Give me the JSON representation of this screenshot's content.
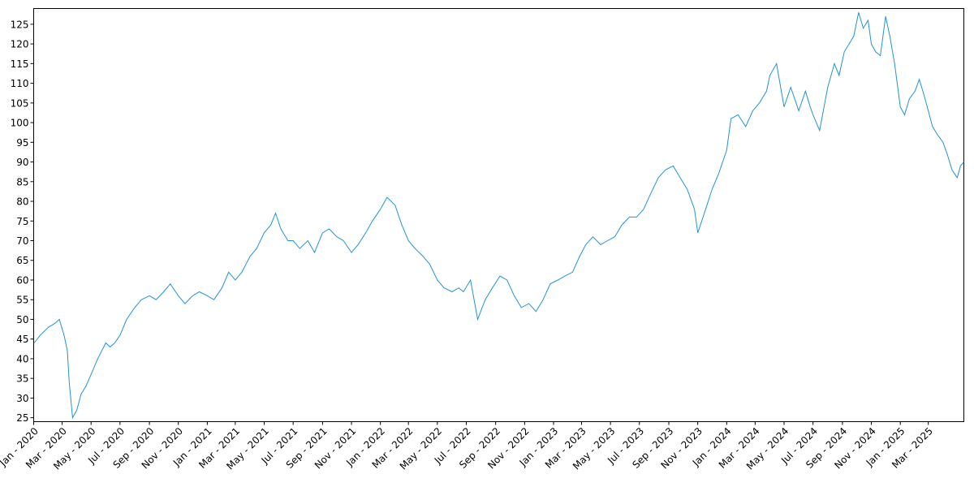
{
  "chart_data": {
    "type": "line",
    "title": "",
    "xlabel": "",
    "ylabel": "",
    "grid": false,
    "legend": "none",
    "colors": {
      "line": "#1f94d6",
      "axis": "#000000",
      "background": "#ffffff"
    },
    "xlim": [
      "2020-01-01",
      "2025-05-15"
    ],
    "ylim": [
      24,
      129
    ],
    "y_ticks": [
      25,
      30,
      35,
      40,
      45,
      50,
      55,
      60,
      65,
      70,
      75,
      80,
      85,
      90,
      95,
      100,
      105,
      110,
      115,
      120,
      125
    ],
    "x_ticks": [
      {
        "date": "2020-01-01",
        "label": "Jan - 2020"
      },
      {
        "date": "2020-03-01",
        "label": "Mar - 2020"
      },
      {
        "date": "2020-05-01",
        "label": "May - 2020"
      },
      {
        "date": "2020-07-01",
        "label": "Jul - 2020"
      },
      {
        "date": "2020-09-01",
        "label": "Sep - 2020"
      },
      {
        "date": "2020-11-01",
        "label": "Nov - 2020"
      },
      {
        "date": "2021-01-01",
        "label": "Jan - 2021"
      },
      {
        "date": "2021-03-01",
        "label": "Mar - 2021"
      },
      {
        "date": "2021-05-01",
        "label": "May - 2021"
      },
      {
        "date": "2021-07-01",
        "label": "Jul - 2021"
      },
      {
        "date": "2021-09-01",
        "label": "Sep - 2021"
      },
      {
        "date": "2021-11-01",
        "label": "Nov - 2021"
      },
      {
        "date": "2022-01-01",
        "label": "Jan - 2022"
      },
      {
        "date": "2022-03-01",
        "label": "Mar - 2022"
      },
      {
        "date": "2022-05-01",
        "label": "May - 2022"
      },
      {
        "date": "2022-07-01",
        "label": "Jul - 2022"
      },
      {
        "date": "2022-09-01",
        "label": "Sep - 2022"
      },
      {
        "date": "2022-11-01",
        "label": "Nov - 2022"
      },
      {
        "date": "2023-01-01",
        "label": "Jan - 2023"
      },
      {
        "date": "2023-03-01",
        "label": "Mar - 2023"
      },
      {
        "date": "2023-05-01",
        "label": "May - 2023"
      },
      {
        "date": "2023-07-01",
        "label": "Jul - 2023"
      },
      {
        "date": "2023-09-01",
        "label": "Sep - 2023"
      },
      {
        "date": "2023-11-01",
        "label": "Nov - 2023"
      },
      {
        "date": "2024-01-01",
        "label": "Jan - 2024"
      },
      {
        "date": "2024-03-01",
        "label": "Mar - 2024"
      },
      {
        "date": "2024-05-01",
        "label": "May - 2024"
      },
      {
        "date": "2024-07-01",
        "label": "Jul - 2024"
      },
      {
        "date": "2024-09-01",
        "label": "Sep - 2024"
      },
      {
        "date": "2024-11-01",
        "label": "Nov - 2024"
      },
      {
        "date": "2025-01-01",
        "label": "Jan - 2025"
      },
      {
        "date": "2025-03-01",
        "label": "Mar - 2025"
      }
    ],
    "series": [
      {
        "x": [
          "2020-01-02",
          "2020-01-15",
          "2020-02-01",
          "2020-02-15",
          "2020-02-24",
          "2020-03-05",
          "2020-03-12",
          "2020-03-16",
          "2020-03-23",
          "2020-04-01",
          "2020-04-10",
          "2020-04-20",
          "2020-05-01",
          "2020-05-15",
          "2020-06-01",
          "2020-06-10",
          "2020-06-20",
          "2020-07-01",
          "2020-07-15",
          "2020-08-01",
          "2020-08-15",
          "2020-09-01",
          "2020-09-15",
          "2020-10-01",
          "2020-10-15",
          "2020-11-01",
          "2020-11-15",
          "2020-12-01",
          "2020-12-15",
          "2021-01-01",
          "2021-01-15",
          "2021-02-01",
          "2021-02-15",
          "2021-03-01",
          "2021-03-15",
          "2021-04-01",
          "2021-04-15",
          "2021-05-01",
          "2021-05-15",
          "2021-05-25",
          "2021-06-05",
          "2021-06-20",
          "2021-07-01",
          "2021-07-15",
          "2021-08-01",
          "2021-08-15",
          "2021-09-01",
          "2021-09-15",
          "2021-10-01",
          "2021-10-15",
          "2021-11-01",
          "2021-11-15",
          "2021-12-01",
          "2021-12-15",
          "2022-01-01",
          "2022-01-15",
          "2022-02-01",
          "2022-02-15",
          "2022-03-01",
          "2022-03-15",
          "2022-04-01",
          "2022-04-15",
          "2022-05-01",
          "2022-05-15",
          "2022-06-01",
          "2022-06-15",
          "2022-06-25",
          "2022-07-10",
          "2022-07-25",
          "2022-08-10",
          "2022-08-25",
          "2022-09-10",
          "2022-09-25",
          "2022-10-10",
          "2022-10-25",
          "2022-11-10",
          "2022-11-25",
          "2022-12-10",
          "2022-12-25",
          "2023-01-10",
          "2023-01-25",
          "2023-02-10",
          "2023-02-25",
          "2023-03-10",
          "2023-03-25",
          "2023-04-10",
          "2023-04-25",
          "2023-05-10",
          "2023-05-25",
          "2023-06-10",
          "2023-06-25",
          "2023-07-10",
          "2023-07-25",
          "2023-08-10",
          "2023-08-25",
          "2023-09-10",
          "2023-09-25",
          "2023-10-10",
          "2023-10-25",
          "2023-11-01",
          "2023-11-15",
          "2023-12-01",
          "2023-12-15",
          "2024-01-01",
          "2024-01-10",
          "2024-01-25",
          "2024-02-10",
          "2024-02-25",
          "2024-03-10",
          "2024-03-25",
          "2024-04-01",
          "2024-04-15",
          "2024-05-01",
          "2024-05-15",
          "2024-06-01",
          "2024-06-15",
          "2024-06-25",
          "2024-07-01",
          "2024-07-15",
          "2024-08-01",
          "2024-08-15",
          "2024-08-25",
          "2024-09-05",
          "2024-09-15",
          "2024-09-25",
          "2024-10-05",
          "2024-10-15",
          "2024-10-25",
          "2024-11-01",
          "2024-11-10",
          "2024-11-20",
          "2024-12-01",
          "2024-12-10",
          "2024-12-20",
          "2025-01-01",
          "2025-01-10",
          "2025-01-20",
          "2025-02-01",
          "2025-02-10",
          "2025-02-20",
          "2025-03-01",
          "2025-03-10",
          "2025-03-20",
          "2025-04-01",
          "2025-04-10",
          "2025-04-20",
          "2025-05-01",
          "2025-05-08",
          "2025-05-15"
        ],
        "y": [
          44,
          46,
          48,
          49,
          50,
          46,
          42,
          34,
          25,
          27,
          31,
          33,
          36,
          40,
          44,
          43,
          44,
          46,
          50,
          53,
          55,
          56,
          55,
          57,
          59,
          56,
          54,
          56,
          57,
          56,
          55,
          58,
          62,
          60,
          62,
          66,
          68,
          72,
          74,
          77,
          73,
          70,
          70,
          68,
          70,
          67,
          72,
          73,
          71,
          70,
          67,
          69,
          72,
          75,
          78,
          81,
          79,
          74,
          70,
          68,
          66,
          64,
          60,
          58,
          57,
          58,
          57,
          60,
          50,
          55,
          58,
          61,
          60,
          56,
          53,
          54,
          52,
          55,
          59,
          60,
          61,
          62,
          66,
          69,
          71,
          69,
          70,
          71,
          74,
          76,
          76,
          78,
          82,
          86,
          88,
          89,
          86,
          83,
          78,
          72,
          77,
          83,
          87,
          93,
          101,
          102,
          99,
          103,
          105,
          108,
          112,
          115,
          104,
          109,
          103,
          108,
          104,
          102,
          98,
          109,
          115,
          112,
          118,
          120,
          122,
          128,
          124,
          126,
          120,
          118,
          117,
          127,
          122,
          115,
          104,
          102,
          106,
          108,
          111,
          107,
          103,
          99,
          97,
          95,
          92,
          88,
          86,
          89,
          90
        ]
      }
    ]
  }
}
